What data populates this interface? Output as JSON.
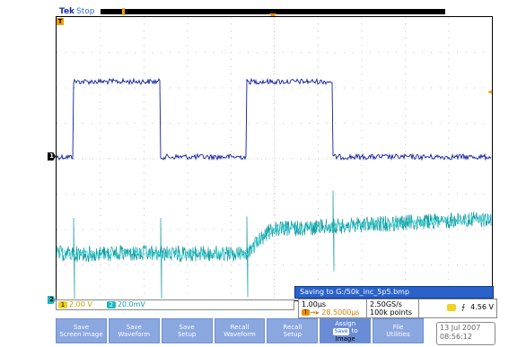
{
  "header": {
    "brand": "Tek",
    "state": "Stop"
  },
  "markers": {
    "ch1": "1",
    "ch2": "2",
    "trigger": "T"
  },
  "status": {
    "ch1_scale": "2.00 V",
    "ch2_scale": "20.0mV"
  },
  "message": "Saving to G:/50k_inc_5p5.bmp",
  "readouts": {
    "timebase": "1.00µs",
    "trig_pos": "→▸ 28.5000µs",
    "sample_rate": "2.50GS/s",
    "record_length": "100k points",
    "trig_level": "4.56 V"
  },
  "menu": [
    {
      "line1": "Save",
      "line2": "Screen Image"
    },
    {
      "line1": "Save",
      "line2": "Waveform"
    },
    {
      "line1": "Save",
      "line2": "Setup"
    },
    {
      "line1": "Recall",
      "line2": "Waveform"
    },
    {
      "line1": "Recall",
      "line2": "Setup"
    },
    {
      "line1": "Assign",
      "chip": "Save",
      "line2": "to",
      "line3": "Image"
    },
    {
      "line1": "File",
      "line2": "Utilities"
    }
  ],
  "datetime": {
    "date": "13 Jul  2007",
    "time": "08:56:12"
  },
  "colors": {
    "ch1": "#1020a0",
    "ch2": "#1ab8c0",
    "trigger": "#f08a00",
    "menu": "#8aa7e0"
  }
}
